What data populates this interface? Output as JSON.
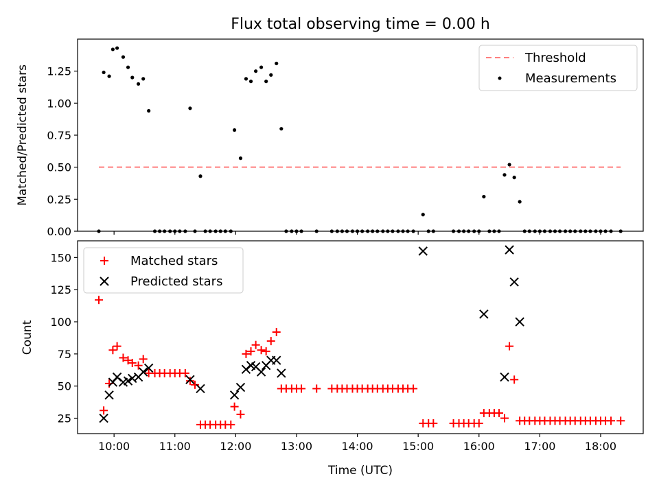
{
  "chart_data": [
    {
      "type": "scatter",
      "title": "Flux total observing time = 0.00 h",
      "xlabel": "",
      "ylabel": "Matched/Predicted stars",
      "xlim": [
        9.4,
        18.7
      ],
      "ylim": [
        0,
        1.5
      ],
      "yticks": [
        0.0,
        0.25,
        0.5,
        0.75,
        1.0,
        1.25
      ],
      "ytick_labels": [
        "0.00",
        "0.25",
        "0.50",
        "0.75",
        "1.00",
        "1.25"
      ],
      "legend": {
        "position": "top-right",
        "entries": [
          {
            "label": "Threshold",
            "style": "dashed-line",
            "color": "#ff7f7f"
          },
          {
            "label": "Measurements",
            "style": "dot",
            "color": "#000000"
          }
        ]
      },
      "threshold": {
        "name": "Threshold",
        "value": 0.5,
        "x_start": 9.75,
        "x_end": 18.33
      },
      "series": [
        {
          "name": "Measurements",
          "color": "#000000",
          "x": [
            9.75,
            9.83,
            9.92,
            9.98,
            10.05,
            10.15,
            10.23,
            10.3,
            10.4,
            10.48,
            10.57,
            10.67,
            10.75,
            10.83,
            10.92,
            11.0,
            11.08,
            11.17,
            11.25,
            11.33,
            11.42,
            11.5,
            11.58,
            11.67,
            11.75,
            11.83,
            11.92,
            11.98,
            12.08,
            12.17,
            12.25,
            12.33,
            12.42,
            12.5,
            12.58,
            12.67,
            12.75,
            12.83,
            12.92,
            13.0,
            13.08,
            13.33,
            13.58,
            13.67,
            13.75,
            13.83,
            13.92,
            14.0,
            14.08,
            14.17,
            14.25,
            14.33,
            14.42,
            14.5,
            14.58,
            14.67,
            14.75,
            14.83,
            14.92,
            15.08,
            15.17,
            15.25,
            15.58,
            15.67,
            15.75,
            15.83,
            15.92,
            16.0,
            16.08,
            16.17,
            16.25,
            16.33,
            16.42,
            16.5,
            16.58,
            16.67,
            16.75,
            16.83,
            16.92,
            17.0,
            17.08,
            17.17,
            17.25,
            17.33,
            17.42,
            17.5,
            17.58,
            17.67,
            17.75,
            17.83,
            17.92,
            18.0,
            18.08,
            18.17,
            18.33
          ],
          "y": [
            0.0,
            1.24,
            1.21,
            1.42,
            1.43,
            1.36,
            1.28,
            1.2,
            1.15,
            1.19,
            0.94,
            0.0,
            0.0,
            0.0,
            0.0,
            0.0,
            0.0,
            0.0,
            0.96,
            0.0,
            0.43,
            0.0,
            0.0,
            0.0,
            0.0,
            0.0,
            0.0,
            0.79,
            0.57,
            1.19,
            1.17,
            1.25,
            1.28,
            1.17,
            1.22,
            1.31,
            0.8,
            0.0,
            0.0,
            0.0,
            0.0,
            0.0,
            0.0,
            0.0,
            0.0,
            0.0,
            0.0,
            0.0,
            0.0,
            0.0,
            0.0,
            0.0,
            0.0,
            0.0,
            0.0,
            0.0,
            0.0,
            0.0,
            0.0,
            0.13,
            0.0,
            0.0,
            0.0,
            0.0,
            0.0,
            0.0,
            0.0,
            0.0,
            0.27,
            0.0,
            0.0,
            0.0,
            0.44,
            0.52,
            0.42,
            0.23,
            0.0,
            0.0,
            0.0,
            0.0,
            0.0,
            0.0,
            0.0,
            0.0,
            0.0,
            0.0,
            0.0,
            0.0,
            0.0,
            0.0,
            0.0,
            0.0,
            0.0,
            0.0,
            0.0
          ]
        }
      ]
    },
    {
      "type": "scatter",
      "title": "",
      "xlabel": "Time (UTC)",
      "ylabel": "Count",
      "xlim": [
        9.4,
        18.7
      ],
      "ylim": [
        13,
        163
      ],
      "xticks": [
        10,
        11,
        12,
        13,
        14,
        15,
        16,
        17,
        18
      ],
      "xtick_labels": [
        "10:00",
        "11:00",
        "12:00",
        "13:00",
        "14:00",
        "15:00",
        "16:00",
        "17:00",
        "18:00"
      ],
      "yticks": [
        25,
        50,
        75,
        100,
        125,
        150
      ],
      "ytick_labels": [
        "25",
        "50",
        "75",
        "100",
        "125",
        "150"
      ],
      "legend": {
        "position": "top-left",
        "entries": [
          {
            "label": "Matched stars",
            "style": "plus",
            "color": "#ff0000"
          },
          {
            "label": "Predicted stars",
            "style": "x",
            "color": "#000000"
          }
        ]
      },
      "series": [
        {
          "name": "Matched stars",
          "marker": "plus",
          "color": "#ff0000",
          "x": [
            9.75,
            9.83,
            9.92,
            9.98,
            10.05,
            10.15,
            10.23,
            10.3,
            10.4,
            10.48,
            10.57,
            10.67,
            10.75,
            10.83,
            10.92,
            11.0,
            11.08,
            11.17,
            11.25,
            11.33,
            11.42,
            11.5,
            11.58,
            11.67,
            11.75,
            11.83,
            11.92,
            11.98,
            12.08,
            12.17,
            12.25,
            12.33,
            12.42,
            12.5,
            12.58,
            12.67,
            12.75,
            12.83,
            12.92,
            13.0,
            13.08,
            13.33,
            13.58,
            13.67,
            13.75,
            13.83,
            13.92,
            14.0,
            14.08,
            14.17,
            14.25,
            14.33,
            14.42,
            14.5,
            14.58,
            14.67,
            14.75,
            14.83,
            14.92,
            15.08,
            15.17,
            15.25,
            15.58,
            15.67,
            15.75,
            15.83,
            15.92,
            16.0,
            16.08,
            16.17,
            16.25,
            16.33,
            16.42,
            16.5,
            16.58,
            16.67,
            16.75,
            16.83,
            16.92,
            17.0,
            17.08,
            17.17,
            17.25,
            17.33,
            17.42,
            17.5,
            17.58,
            17.67,
            17.75,
            17.83,
            17.92,
            18.0,
            18.08,
            18.17,
            18.33
          ],
          "y": [
            117,
            31,
            52,
            78,
            81,
            72,
            70,
            68,
            66,
            71,
            60,
            60,
            60,
            60,
            60,
            60,
            60,
            60,
            54,
            51,
            20,
            20,
            20,
            20,
            20,
            20,
            20,
            34,
            28,
            75,
            77,
            82,
            78,
            77,
            85,
            92,
            48,
            48,
            48,
            48,
            48,
            48,
            48,
            48,
            48,
            48,
            48,
            48,
            48,
            48,
            48,
            48,
            48,
            48,
            48,
            48,
            48,
            48,
            48,
            21,
            21,
            21,
            21,
            21,
            21,
            21,
            21,
            21,
            29,
            29,
            29,
            29,
            25,
            81,
            55,
            23,
            23,
            23,
            23,
            23,
            23,
            23,
            23,
            23,
            23,
            23,
            23,
            23,
            23,
            23,
            23,
            23,
            23,
            23,
            23
          ]
        },
        {
          "name": "Predicted stars",
          "marker": "x",
          "color": "#000000",
          "x": [
            9.83,
            9.92,
            9.98,
            10.05,
            10.15,
            10.23,
            10.3,
            10.4,
            10.48,
            10.57,
            11.25,
            11.42,
            11.98,
            12.08,
            12.17,
            12.25,
            12.33,
            12.42,
            12.5,
            12.58,
            12.67,
            12.75,
            15.08,
            16.08,
            16.42,
            16.5,
            16.58,
            16.67
          ],
          "y": [
            25,
            43,
            53,
            57,
            53,
            54,
            56,
            57,
            61,
            64,
            55,
            48,
            43,
            49,
            63,
            66,
            65,
            61,
            66,
            70,
            70,
            60,
            155,
            106,
            57,
            156,
            131,
            100
          ]
        }
      ]
    }
  ]
}
